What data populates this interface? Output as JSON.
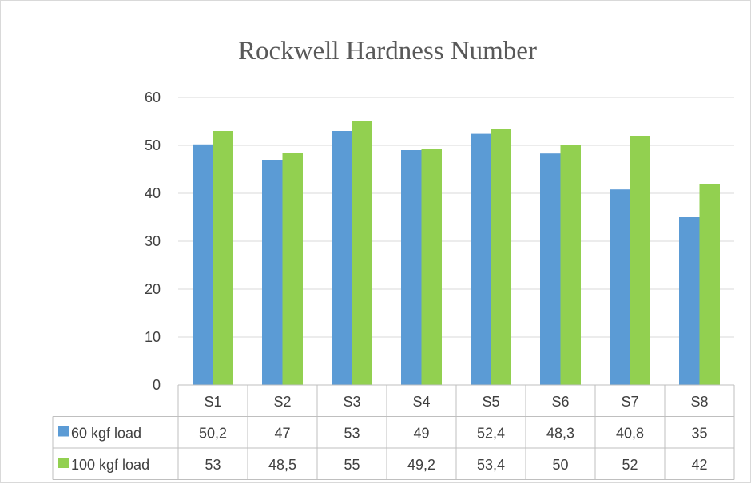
{
  "chart_data": {
    "type": "bar",
    "title": "Rockwell Hardness Number",
    "categories": [
      "S1",
      "S2",
      "S3",
      "S4",
      "S5",
      "S6",
      "S7",
      "S8"
    ],
    "series": [
      {
        "name": "60 kgf load",
        "color": "#5b9bd5",
        "values": [
          50.2,
          47,
          53,
          49,
          52.4,
          48.3,
          40.8,
          35
        ],
        "labels": [
          "50,2",
          "47",
          "53",
          "49",
          "52,4",
          "48,3",
          "40,8",
          "35"
        ]
      },
      {
        "name": "100 kgf load",
        "color": "#92d050",
        "values": [
          53,
          48.5,
          55,
          49.2,
          53.4,
          50,
          52,
          42
        ],
        "labels": [
          "53",
          "48,5",
          "55",
          "49,2",
          "53,4",
          "50",
          "52",
          "42"
        ]
      }
    ],
    "ylim": [
      0,
      60
    ],
    "yticks": [
      0,
      10,
      20,
      30,
      40,
      50,
      60
    ],
    "grid": true,
    "legend": "data-table",
    "gridline_color": "#d9d9d9",
    "table_border_color": "#bfbfbf"
  }
}
